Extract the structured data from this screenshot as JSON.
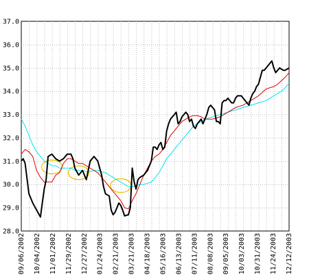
{
  "chart_data": {
    "type": "line",
    "ylim": [
      28.0,
      37.0
    ],
    "y_ticks": [
      "28.0",
      "29.0",
      "30.0",
      "31.0",
      "32.0",
      "33.0",
      "34.0",
      "35.0",
      "36.0",
      "37.0"
    ],
    "x_ticks": [
      "09/06/2002",
      "10/04/2002",
      "11/01/2002",
      "11/29/2002",
      "12/27/2002",
      "01/24/2003",
      "02/21/2003",
      "03/21/2003",
      "04/18/2003",
      "05/16/2003",
      "06/13/2003",
      "07/11/2003",
      "08/08/2003",
      "09/05/2003",
      "10/03/2003",
      "10/31/2003",
      "11/24/2003",
      "12/12/2003"
    ],
    "grid": true,
    "colors": {
      "price": "#000000",
      "fast_ma": "#dd0000",
      "slow_ma": "#00e5ee",
      "highlight_circle": "#f0c000",
      "grid": "#b8b8b8"
    },
    "series": [
      {
        "key": "price",
        "x": [
          0,
          0.25,
          0.5,
          1,
          1.5,
          2,
          2.5,
          2.75,
          3,
          3.25,
          3.5,
          4,
          4.5,
          5,
          5.5,
          6,
          6.5,
          6.75,
          7,
          7.5,
          8,
          8.5,
          9,
          9.5,
          10,
          10.5,
          10.75,
          11,
          11.5,
          11.75,
          12,
          12.25,
          12.5,
          12.75,
          13,
          13.25,
          13.5,
          14,
          14.25,
          14.5,
          14.75,
          15,
          15.25,
          15.5,
          16,
          16.25,
          16.5,
          16.75,
          17,
          17.25,
          17.5,
          17.75,
          18,
          18.25,
          18.5,
          18.75,
          19,
          19.25,
          19.5,
          19.75,
          20,
          20.25,
          20.5,
          20.75,
          21,
          21.25,
          21.5,
          21.75,
          22,
          22.25,
          22.5,
          22.75,
          23,
          23.25,
          23.5,
          23.75,
          24,
          24.25,
          24.5,
          24.75,
          25,
          25.25,
          25.5,
          25.75,
          26,
          26.25,
          26.5,
          26.75,
          27,
          27.25,
          27.5,
          27.75,
          28,
          28.25,
          28.5,
          28.75,
          29,
          29.25,
          29.5,
          29.75,
          30,
          30.25,
          30.5,
          30.75,
          31,
          31.25,
          31.5,
          31.75,
          32,
          32.25,
          32.5,
          32.75,
          33,
          33.25,
          33.5,
          33.75,
          34,
          34.25,
          34.5,
          34.75,
          35
        ],
        "values": [
          31.0,
          31.1,
          30.9,
          29.6,
          29.2,
          28.9,
          28.6,
          29.2,
          29.8,
          30.2,
          31.2,
          31.3,
          31.1,
          31.0,
          31.1,
          31.3,
          31.3,
          31.1,
          30.7,
          30.4,
          30.6,
          30.2,
          31.0,
          31.2,
          31.0,
          30.4,
          29.9,
          29.6,
          29.5,
          28.9,
          28.7,
          28.8,
          29.0,
          29.2,
          29.1,
          28.9,
          28.65,
          28.7,
          29.0,
          30.7,
          30.1,
          29.8,
          30.2,
          30.3,
          30.4,
          30.5,
          30.6,
          30.8,
          31.0,
          31.6,
          31.6,
          31.5,
          31.7,
          31.8,
          31.5,
          31.6,
          32.3,
          32.6,
          32.8,
          32.9,
          33.0,
          33.1,
          32.6,
          32.7,
          32.9,
          33.0,
          33.1,
          33.0,
          32.7,
          32.8,
          32.5,
          32.4,
          32.6,
          32.7,
          32.8,
          32.6,
          32.8,
          33.0,
          33.3,
          33.4,
          33.3,
          33.2,
          32.7,
          32.7,
          32.6,
          33.5,
          33.6,
          33.6,
          33.7,
          33.6,
          33.5,
          33.5,
          33.7,
          33.8,
          33.8,
          33.8,
          33.7,
          33.6,
          33.5,
          33.4,
          33.7,
          33.9,
          34.0,
          34.2,
          34.3,
          34.6,
          34.9,
          34.9,
          35.0,
          35.1,
          35.2,
          35.3,
          35.0,
          34.8,
          34.9,
          35.0,
          34.95,
          34.9,
          34.9,
          34.95,
          35.0
        ],
        "width": 2.0
      },
      {
        "key": "fast_ma",
        "x": [
          0,
          0.5,
          1,
          1.5,
          2,
          2.5,
          3,
          3.5,
          4,
          4.5,
          5,
          5.5,
          6,
          6.5,
          7,
          7.5,
          8,
          8.5,
          9,
          9.5,
          10,
          10.5,
          11,
          11.5,
          12,
          12.5,
          13,
          13.5,
          14,
          14.5,
          15,
          15.5,
          16,
          16.5,
          17,
          17.5,
          18,
          18.5,
          19,
          19.5,
          20,
          20.5,
          21,
          21.5,
          22,
          22.5,
          23,
          23.5,
          24,
          24.5,
          25,
          25.5,
          26,
          26.5,
          27,
          27.5,
          28,
          28.5,
          29,
          29.5,
          30,
          30.5,
          31,
          31.5,
          32,
          32.5,
          33,
          33.5,
          34,
          34.5,
          35
        ],
        "values": [
          31.3,
          31.5,
          31.4,
          31.2,
          30.6,
          30.3,
          30.1,
          30.1,
          30.1,
          30.4,
          30.5,
          30.9,
          31.1,
          31.1,
          31.0,
          30.9,
          30.9,
          30.8,
          30.7,
          30.6,
          30.5,
          30.3,
          30.1,
          29.9,
          29.7,
          29.5,
          29.3,
          29.0,
          28.95,
          29.3,
          29.6,
          30.0,
          30.4,
          30.7,
          31.0,
          31.2,
          31.3,
          31.5,
          31.8,
          32.1,
          32.3,
          32.5,
          32.7,
          32.8,
          32.9,
          32.95,
          32.95,
          32.9,
          32.8,
          32.8,
          32.8,
          32.85,
          32.9,
          33.0,
          33.1,
          33.2,
          33.3,
          33.35,
          33.4,
          33.5,
          33.6,
          33.7,
          33.8,
          33.95,
          34.1,
          34.15,
          34.2,
          34.3,
          34.45,
          34.6,
          34.8
        ],
        "width": 1.0
      },
      {
        "key": "slow_ma",
        "x": [
          0,
          0.5,
          1,
          1.5,
          2,
          2.5,
          3,
          3.5,
          4,
          4.5,
          5,
          5.5,
          6,
          6.5,
          7,
          7.5,
          8,
          8.5,
          9,
          9.5,
          10,
          10.5,
          11,
          11.5,
          12,
          12.5,
          13,
          13.5,
          14,
          14.5,
          15,
          15.5,
          16,
          16.5,
          17,
          17.5,
          18,
          18.5,
          19,
          19.5,
          20,
          20.5,
          21,
          21.5,
          22,
          22.5,
          23,
          23.5,
          24,
          24.5,
          25,
          25.5,
          26,
          26.5,
          27,
          27.5,
          28,
          28.5,
          29,
          29.5,
          30,
          30.5,
          31,
          31.5,
          32,
          32.5,
          33,
          33.5,
          34,
          34.5,
          35
        ],
        "values": [
          32.8,
          32.5,
          32.1,
          31.7,
          31.4,
          31.2,
          31.0,
          30.9,
          30.8,
          30.8,
          30.7,
          30.7,
          30.7,
          30.7,
          30.6,
          30.6,
          30.6,
          30.55,
          30.55,
          30.6,
          30.6,
          30.55,
          30.5,
          30.4,
          30.3,
          30.2,
          30.1,
          30.0,
          29.9,
          29.9,
          29.95,
          30.0,
          30.0,
          30.05,
          30.1,
          30.3,
          30.5,
          30.8,
          31.1,
          31.3,
          31.5,
          31.7,
          31.9,
          32.1,
          32.3,
          32.5,
          32.6,
          32.7,
          32.8,
          32.85,
          32.9,
          32.95,
          33.0,
          33.05,
          33.1,
          33.15,
          33.2,
          33.25,
          33.3,
          33.35,
          33.4,
          33.45,
          33.5,
          33.55,
          33.6,
          33.7,
          33.8,
          33.9,
          34.0,
          34.15,
          34.35
        ],
        "width": 1.0
      }
    ],
    "highlights": [
      {
        "x": 4.0,
        "y": 30.75
      },
      {
        "x": 7.5,
        "y": 30.5
      },
      {
        "x": 13.0,
        "y": 29.95
      }
    ]
  }
}
